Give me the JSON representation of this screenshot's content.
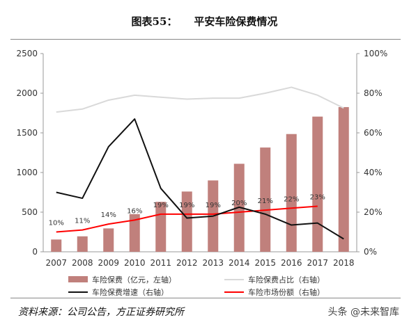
{
  "title": {
    "prefix": "图表55：",
    "text": "平安车险保费情况"
  },
  "source": "资料来源：公司公告，方正证券研究所",
  "watermark": "头条 @未来智库",
  "colors": {
    "bar": "#c0807c",
    "share_line": "#d9d9d9",
    "growth_line": "#111111",
    "market_line": "#ff0000"
  },
  "chart_data": {
    "type": "bar",
    "categories": [
      "2007",
      "2008",
      "2009",
      "2010",
      "2011",
      "2012",
      "2013",
      "2014",
      "2015",
      "2016",
      "2017",
      "2018"
    ],
    "left_axis": {
      "range": [
        0,
        2500
      ],
      "ticks": [
        "0",
        "500",
        "1000",
        "1500",
        "2000",
        "2500"
      ]
    },
    "right_axis": {
      "range": [
        0,
        1
      ],
      "ticks": [
        "0%",
        "20%",
        "40%",
        "60%",
        "80%",
        "100%"
      ]
    },
    "series": [
      {
        "name": "车险保费（亿元，左轴）",
        "type": "bar",
        "axis": "left",
        "values": [
          155,
          195,
          295,
          475,
          630,
          760,
          900,
          1110,
          1315,
          1485,
          1705,
          1825
        ]
      },
      {
        "name": "车险保费占比（右轴）",
        "type": "line",
        "axis": "right",
        "values": [
          0.705,
          0.72,
          0.765,
          0.79,
          0.78,
          0.77,
          0.775,
          0.775,
          0.8,
          0.83,
          0.79,
          0.725
        ]
      },
      {
        "name": "车险保费增速（右轴）",
        "type": "line",
        "axis": "right",
        "values": [
          0.3,
          0.27,
          0.53,
          0.67,
          0.32,
          0.17,
          0.18,
          0.225,
          0.19,
          0.135,
          0.145,
          0.065
        ]
      },
      {
        "name": "车险市场份额（右轴）",
        "type": "line",
        "axis": "right",
        "values": [
          0.1,
          0.11,
          0.14,
          0.16,
          0.19,
          0.19,
          0.19,
          0.2,
          0.21,
          0.22,
          0.23,
          null
        ]
      }
    ],
    "data_labels": [
      "10%",
      "11%",
      "14%",
      "16%",
      "19%",
      "19%",
      "19%",
      "20%",
      "21%",
      "22%",
      "23%"
    ],
    "legend": {
      "position": "bottom",
      "items": [
        "车险保费（亿元，左轴）",
        "车险保费占比（右轴）",
        "车险保费增速（右轴）",
        "车险市场份额（右轴）"
      ]
    }
  }
}
